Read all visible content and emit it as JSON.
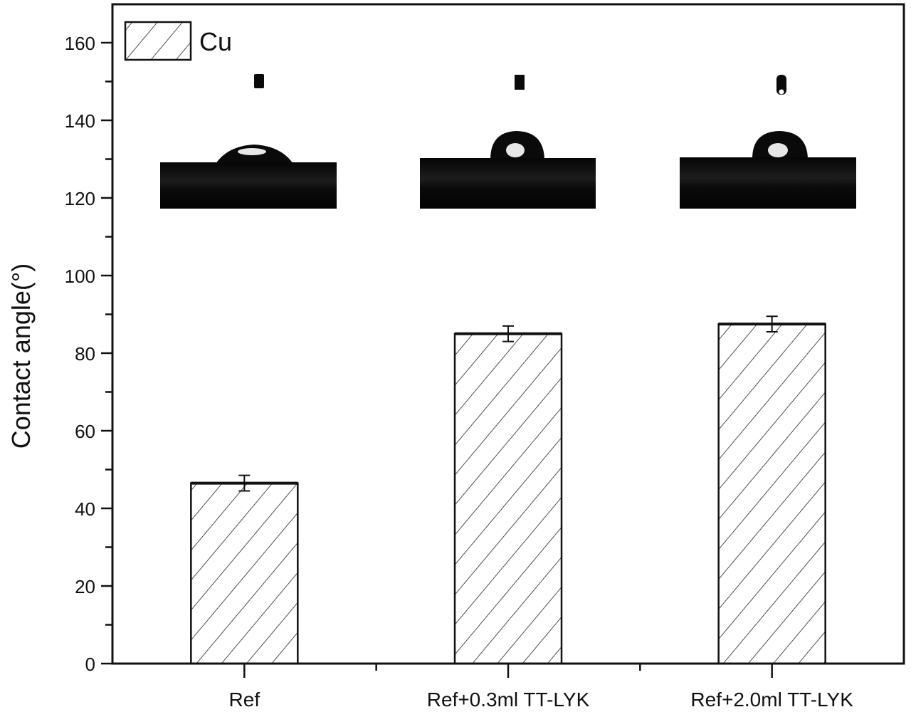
{
  "chart_data": {
    "type": "bar",
    "title": "",
    "xlabel": "",
    "ylabel": "Contact angle(°)",
    "ylim": [
      0,
      170
    ],
    "yticks": [
      0,
      20,
      40,
      60,
      80,
      100,
      120,
      140,
      160
    ],
    "minor_ytick_step": 10,
    "categories": [
      "Ref",
      "Ref+0.3ml TT-LYK",
      "Ref+2.0ml TT-LYK"
    ],
    "series": [
      {
        "name": "Cu",
        "values": [
          46.5,
          85,
          87.5
        ],
        "errors": [
          2,
          2,
          2
        ],
        "fill": "hatched (diagonal lines)",
        "color": "#000000"
      }
    ],
    "legend": {
      "entries": [
        "Cu"
      ],
      "position": "top-left"
    },
    "grid": false,
    "insets": [
      {
        "category": "Ref",
        "description": "water droplet on copper surface, low contact angle (flattened droplet)"
      },
      {
        "category": "Ref+0.3ml TT-LYK",
        "description": "water droplet on copper surface, near-hemispherical droplet"
      },
      {
        "category": "Ref+2.0ml TT-LYK",
        "description": "water droplet on copper surface, near-hemispherical droplet"
      }
    ]
  },
  "labels": {
    "ylabel": "Contact angle(°)",
    "legend": "Cu",
    "yticks": [
      "0",
      "20",
      "40",
      "60",
      "80",
      "100",
      "120",
      "140",
      "160"
    ],
    "categories": [
      "Ref",
      "Ref+0.3ml TT-LYK",
      "Ref+2.0ml TT-LYK"
    ]
  }
}
